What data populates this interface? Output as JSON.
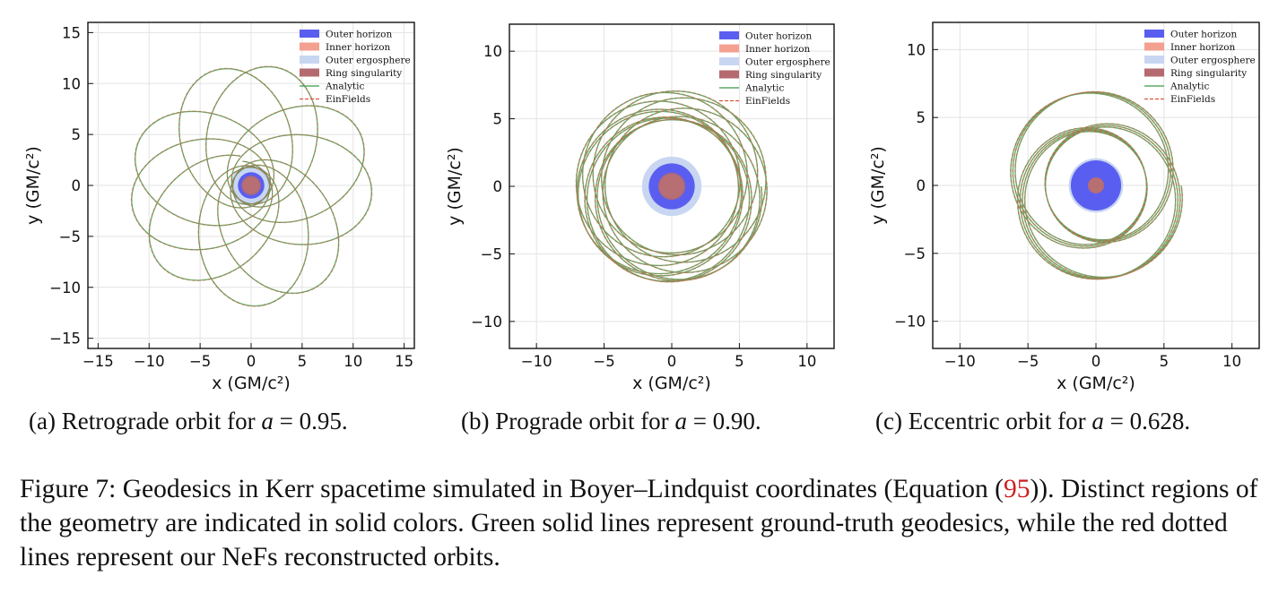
{
  "figure": {
    "caption": {
      "label": "Figure 7:",
      "text_before_ref": "Geodesics in Kerr spacetime simulated in Boyer–Lindquist coordinates (Equation (",
      "ref": "95",
      "text_after_ref": ")). Distinct regions of the geometry are indicated in solid colors. Green solid lines represent ground-truth geodesics, while the red dotted lines represent our NeFs reconstructed orbits."
    },
    "subcaptions": [
      {
        "label": "(a) Retrograde orbit for",
        "var": "a",
        "eq": "= 0.95."
      },
      {
        "label": "(b) Prograde orbit for",
        "var": "a",
        "eq": "= 0.90."
      },
      {
        "label": "(c) Eccentric orbit for",
        "var": "a",
        "eq": "= 0.628."
      }
    ]
  },
  "colors": {
    "outer_horizon": "#5a5ef0",
    "inner_horizon": "#f4a090",
    "outer_ergosphere": "#c8d6f2",
    "ring_singularity": "#b46a6e",
    "analytic": "#3a9a4a",
    "einfields": "#e0553a",
    "orbit_overlap": "#8a7a3a"
  },
  "chart_data": [
    {
      "type": "line",
      "panel": "a",
      "xlabel": "x (GM/c²)",
      "ylabel": "y (GM/c²)",
      "xlim": [
        -16,
        16
      ],
      "ylim": [
        -16,
        16
      ],
      "xticks": [
        -15,
        -10,
        -5,
        0,
        5,
        10,
        15
      ],
      "yticks": [
        -15,
        -10,
        -5,
        0,
        5,
        10,
        15
      ],
      "grid": true,
      "legend_position": "top-right",
      "legend": [
        "Outer horizon",
        "Inner horizon",
        "Outer ergosphere",
        "Ring singularity",
        "Analytic",
        "EinFields"
      ],
      "regions": {
        "outer_ergosphere_r": 2.0,
        "outer_horizon_r": 1.3,
        "inner_horizon_r": 0.8,
        "ring_singularity_r": 0.95
      },
      "orbit": {
        "kind": "retrograde",
        "semi_major": 6.8,
        "eccentricity": 0.74,
        "precession_deg": 67,
        "turns": 11,
        "start_angle_deg": 110
      }
    },
    {
      "type": "line",
      "panel": "b",
      "xlabel": "x (GM/c²)",
      "ylabel": "y (GM/c²)",
      "xlim": [
        -12,
        12
      ],
      "ylim": [
        -12,
        12
      ],
      "xticks": [
        -10,
        -5,
        0,
        5,
        10
      ],
      "yticks": [
        -10,
        -5,
        0,
        5,
        10
      ],
      "grid": true,
      "legend_position": "top-right",
      "legend": [
        "Outer horizon",
        "Inner horizon",
        "Outer ergosphere",
        "Ring singularity",
        "Analytic",
        "EinFields"
      ],
      "regions": {
        "outer_ergosphere_r": 2.2,
        "outer_horizon_r": 1.7,
        "inner_horizon_r": 0.9,
        "ring_singularity_r": 1.0
      },
      "orbit": {
        "kind": "prograde",
        "semi_major": 6.0,
        "eccentricity": 0.18,
        "precession_deg": 41,
        "turns": 12,
        "start_angle_deg": 0
      }
    },
    {
      "type": "line",
      "panel": "c",
      "xlabel": "x (GM/c²)",
      "ylabel": "y (GM/c²)",
      "xlim": [
        -12,
        12
      ],
      "ylim": [
        -12,
        12
      ],
      "xticks": [
        -10,
        -5,
        0,
        5,
        10
      ],
      "yticks": [
        -10,
        -5,
        0,
        5,
        10
      ],
      "grid": true,
      "legend_position": "top-right",
      "legend": [
        "Outer horizon",
        "Inner horizon",
        "Outer ergosphere",
        "Ring singularity",
        "Analytic",
        "EinFields"
      ],
      "regions": {
        "outer_ergosphere_r": 2.0,
        "outer_horizon_r": 1.85,
        "inner_horizon_r": 0.55,
        "ring_singularity_r": 0.6
      },
      "orbit": {
        "kind": "eccentric",
        "semi_major": 5.3,
        "eccentricity": 0.3,
        "precession_deg": 122,
        "turns": 10,
        "start_angle_deg": 0
      }
    }
  ]
}
